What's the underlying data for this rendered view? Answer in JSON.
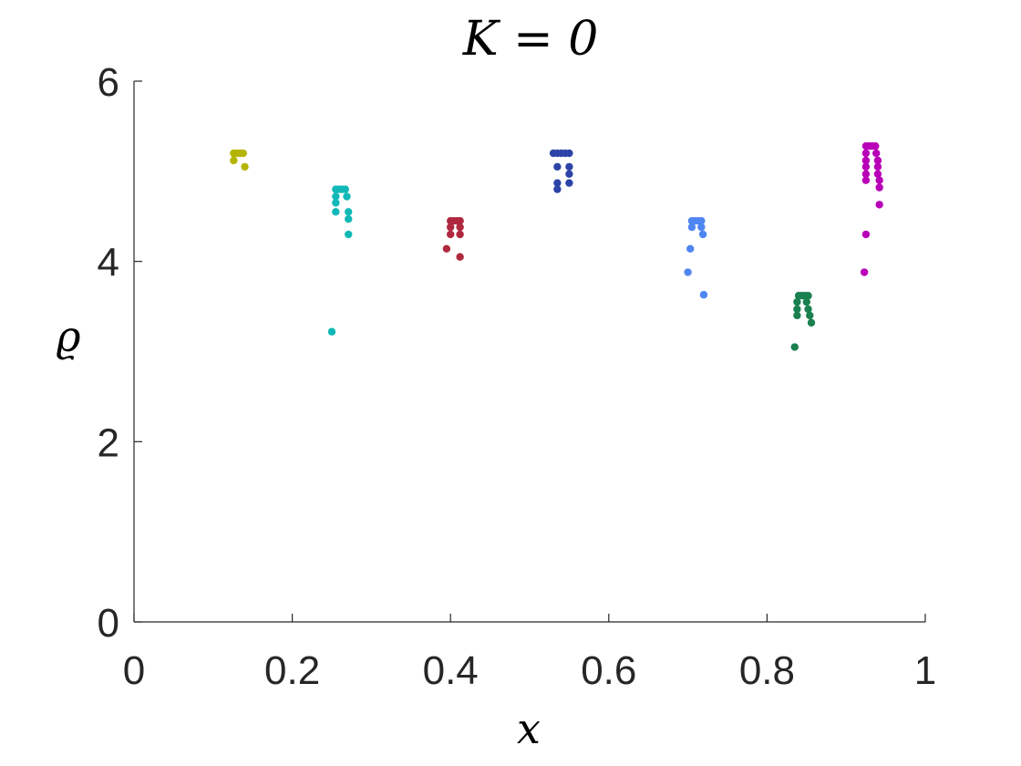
{
  "chart_data": {
    "type": "scatter",
    "title": "K = 0",
    "xlabel": "x",
    "ylabel": "ϱ",
    "xlim": [
      0,
      1
    ],
    "ylim": [
      0,
      6
    ],
    "xticks": [
      0,
      0.2,
      0.4,
      0.6,
      0.8,
      1
    ],
    "xtick_labels": [
      "0",
      "0.2",
      "0.4",
      "0.6",
      "0.8",
      "1"
    ],
    "yticks": [
      0,
      2,
      4,
      6
    ],
    "ytick_labels": [
      "0",
      "2",
      "4",
      "6"
    ],
    "grid": false,
    "series": [
      {
        "color": "#b5b400",
        "points": [
          [
            0.126,
            5.2
          ],
          [
            0.13,
            5.2
          ],
          [
            0.134,
            5.2
          ],
          [
            0.138,
            5.2
          ],
          [
            0.126,
            5.12
          ],
          [
            0.14,
            5.05
          ]
        ]
      },
      {
        "color": "#12b8b8",
        "points": [
          [
            0.255,
            4.8
          ],
          [
            0.259,
            4.8
          ],
          [
            0.263,
            4.8
          ],
          [
            0.267,
            4.8
          ],
          [
            0.255,
            4.72
          ],
          [
            0.269,
            4.72
          ],
          [
            0.255,
            4.65
          ],
          [
            0.255,
            4.55
          ],
          [
            0.271,
            4.55
          ],
          [
            0.271,
            4.47
          ],
          [
            0.271,
            4.3
          ],
          [
            0.25,
            3.22
          ]
        ]
      },
      {
        "color": "#b0283f",
        "points": [
          [
            0.4,
            4.45
          ],
          [
            0.404,
            4.45
          ],
          [
            0.408,
            4.45
          ],
          [
            0.412,
            4.45
          ],
          [
            0.4,
            4.38
          ],
          [
            0.412,
            4.38
          ],
          [
            0.4,
            4.3
          ],
          [
            0.412,
            4.3
          ],
          [
            0.395,
            4.14
          ],
          [
            0.412,
            4.05
          ]
        ]
      },
      {
        "color": "#2c44a8",
        "points": [
          [
            0.53,
            5.2
          ],
          [
            0.535,
            5.2
          ],
          [
            0.54,
            5.2
          ],
          [
            0.545,
            5.2
          ],
          [
            0.55,
            5.2
          ],
          [
            0.535,
            5.05
          ],
          [
            0.55,
            5.05
          ],
          [
            0.55,
            4.97
          ],
          [
            0.535,
            4.87
          ],
          [
            0.55,
            4.87
          ],
          [
            0.535,
            4.8
          ]
        ]
      },
      {
        "color": "#4f86f2",
        "points": [
          [
            0.705,
            4.45
          ],
          [
            0.709,
            4.45
          ],
          [
            0.713,
            4.45
          ],
          [
            0.717,
            4.45
          ],
          [
            0.705,
            4.38
          ],
          [
            0.717,
            4.38
          ],
          [
            0.719,
            4.3
          ],
          [
            0.703,
            4.14
          ],
          [
            0.7,
            3.88
          ],
          [
            0.72,
            3.63
          ]
        ]
      },
      {
        "color": "#1a8050",
        "points": [
          [
            0.84,
            3.62
          ],
          [
            0.844,
            3.62
          ],
          [
            0.848,
            3.62
          ],
          [
            0.852,
            3.62
          ],
          [
            0.838,
            3.55
          ],
          [
            0.85,
            3.55
          ],
          [
            0.838,
            3.47
          ],
          [
            0.852,
            3.47
          ],
          [
            0.838,
            3.4
          ],
          [
            0.854,
            3.4
          ],
          [
            0.856,
            3.32
          ],
          [
            0.835,
            3.05
          ]
        ]
      },
      {
        "color": "#b800b8",
        "points": [
          [
            0.925,
            5.28
          ],
          [
            0.929,
            5.28
          ],
          [
            0.933,
            5.28
          ],
          [
            0.937,
            5.28
          ],
          [
            0.925,
            5.2
          ],
          [
            0.938,
            5.2
          ],
          [
            0.925,
            5.12
          ],
          [
            0.94,
            5.12
          ],
          [
            0.925,
            5.05
          ],
          [
            0.94,
            5.05
          ],
          [
            0.925,
            4.97
          ],
          [
            0.94,
            4.97
          ],
          [
            0.925,
            4.9
          ],
          [
            0.942,
            4.9
          ],
          [
            0.942,
            4.82
          ],
          [
            0.942,
            4.63
          ],
          [
            0.925,
            4.3
          ],
          [
            0.923,
            3.88
          ]
        ]
      }
    ]
  }
}
